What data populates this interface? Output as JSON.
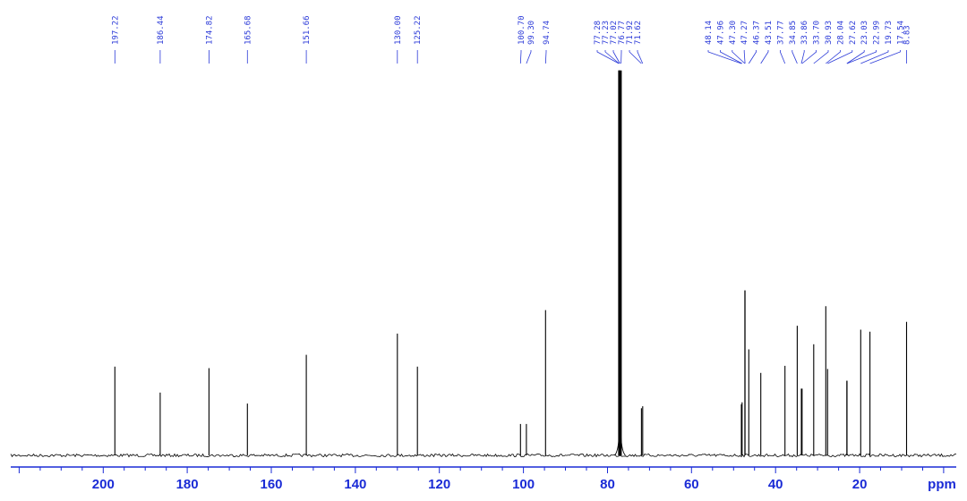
{
  "chart_data": {
    "type": "line",
    "xlabel": "ppm",
    "ylabel": "",
    "xlim": [
      222.0,
      -3.0
    ],
    "x_reversed": true,
    "ylim": [
      0,
      1.0
    ],
    "grid": false,
    "x_ticks": [
      200,
      180,
      160,
      140,
      120,
      100,
      80,
      60,
      40,
      20
    ],
    "x_tick_labels": [
      "200",
      "180",
      "160",
      "140",
      "120",
      "100",
      "80",
      "60",
      "40",
      "20"
    ],
    "peak_labels": [
      "197.22",
      "186.44",
      "174.82",
      "165.68",
      "151.66",
      "130.00",
      "125.22",
      "100.70",
      "99.30",
      "94.74",
      "77.28",
      "77.23",
      "77.02",
      "76.77",
      "71.92",
      "71.62",
      "48.14",
      "47.96",
      "47.30",
      "47.27",
      "46.37",
      "43.51",
      "37.77",
      "34.85",
      "33.86",
      "33.70",
      "30.93",
      "28.04",
      "27.62",
      "23.03",
      "22.99",
      "19.73",
      "17.54",
      "8.83"
    ],
    "peaks": [
      {
        "ppm": 197.22,
        "intensity": 0.226
      },
      {
        "ppm": 186.44,
        "intensity": 0.16
      },
      {
        "ppm": 174.82,
        "intensity": 0.222
      },
      {
        "ppm": 165.68,
        "intensity": 0.132
      },
      {
        "ppm": 151.66,
        "intensity": 0.256
      },
      {
        "ppm": 130.0,
        "intensity": 0.31
      },
      {
        "ppm": 125.22,
        "intensity": 0.226
      },
      {
        "ppm": 100.7,
        "intensity": 0.08
      },
      {
        "ppm": 99.3,
        "intensity": 0.08
      },
      {
        "ppm": 94.74,
        "intensity": 0.37
      },
      {
        "ppm": 77.28,
        "intensity": 0.98
      },
      {
        "ppm": 77.23,
        "intensity": 0.98
      },
      {
        "ppm": 77.02,
        "intensity": 0.98
      },
      {
        "ppm": 76.77,
        "intensity": 0.98
      },
      {
        "ppm": 71.92,
        "intensity": 0.12
      },
      {
        "ppm": 71.62,
        "intensity": 0.125
      },
      {
        "ppm": 48.14,
        "intensity": 0.13
      },
      {
        "ppm": 47.96,
        "intensity": 0.135
      },
      {
        "ppm": 47.3,
        "intensity": 0.42
      },
      {
        "ppm": 47.27,
        "intensity": 0.42
      },
      {
        "ppm": 46.37,
        "intensity": 0.27
      },
      {
        "ppm": 43.51,
        "intensity": 0.21
      },
      {
        "ppm": 37.77,
        "intensity": 0.228
      },
      {
        "ppm": 34.85,
        "intensity": 0.33
      },
      {
        "ppm": 33.86,
        "intensity": 0.17
      },
      {
        "ppm": 33.7,
        "intensity": 0.17
      },
      {
        "ppm": 30.93,
        "intensity": 0.283
      },
      {
        "ppm": 28.04,
        "intensity": 0.38
      },
      {
        "ppm": 27.62,
        "intensity": 0.22
      },
      {
        "ppm": 23.03,
        "intensity": 0.19
      },
      {
        "ppm": 22.99,
        "intensity": 0.19
      },
      {
        "ppm": 19.73,
        "intensity": 0.32
      },
      {
        "ppm": 17.54,
        "intensity": 0.315
      },
      {
        "ppm": 8.83,
        "intensity": 0.34
      }
    ]
  },
  "colors": {
    "spectrum": "#000000",
    "axis": "#1a2bd6",
    "labels": "#2b3ad8"
  }
}
